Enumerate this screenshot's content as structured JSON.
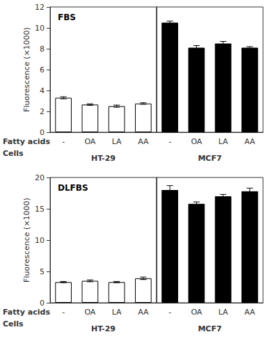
{
  "chart_data": [
    {
      "type": "bar",
      "title": "FBS",
      "ylabel": "Fluorescence (×1000)",
      "categories": [
        "-",
        "OA",
        "LA",
        "AA"
      ],
      "series": [
        {
          "name": "HT-29",
          "color": "white",
          "values": [
            3.3,
            2.65,
            2.5,
            2.75
          ],
          "errors": [
            0.1,
            0.07,
            0.1,
            0.07
          ]
        },
        {
          "name": "MCF7",
          "color": "black",
          "values": [
            10.5,
            8.1,
            8.5,
            8.1
          ],
          "errors": [
            0.15,
            0.2,
            0.2,
            0.1
          ]
        }
      ],
      "edgecolor": "black",
      "error_color": "black",
      "ylim": [
        0,
        12
      ],
      "yticks": [
        0,
        2,
        4,
        6,
        8,
        10,
        12
      ],
      "grid": false,
      "row_labels": [
        "Fatty acids",
        "Cells"
      ]
    },
    {
      "type": "bar",
      "title": "DLFBS",
      "ylabel": "Fluorescence (×1000)",
      "categories": [
        "-",
        "OA",
        "LA",
        "AA"
      ],
      "series": [
        {
          "name": "HT-29",
          "color": "white",
          "values": [
            3.3,
            3.5,
            3.3,
            3.9
          ],
          "errors": [
            0.1,
            0.15,
            0.1,
            0.2
          ]
        },
        {
          "name": "MCF7",
          "color": "black",
          "values": [
            18.0,
            15.8,
            17.0,
            17.8
          ],
          "errors": [
            0.7,
            0.3,
            0.3,
            0.5
          ]
        }
      ],
      "edgecolor": "black",
      "error_color": "black",
      "ylim": [
        0,
        20
      ],
      "yticks": [
        0,
        5,
        10,
        15,
        20
      ],
      "grid": false,
      "row_labels": [
        "Fatty acids",
        "Cells"
      ]
    }
  ]
}
